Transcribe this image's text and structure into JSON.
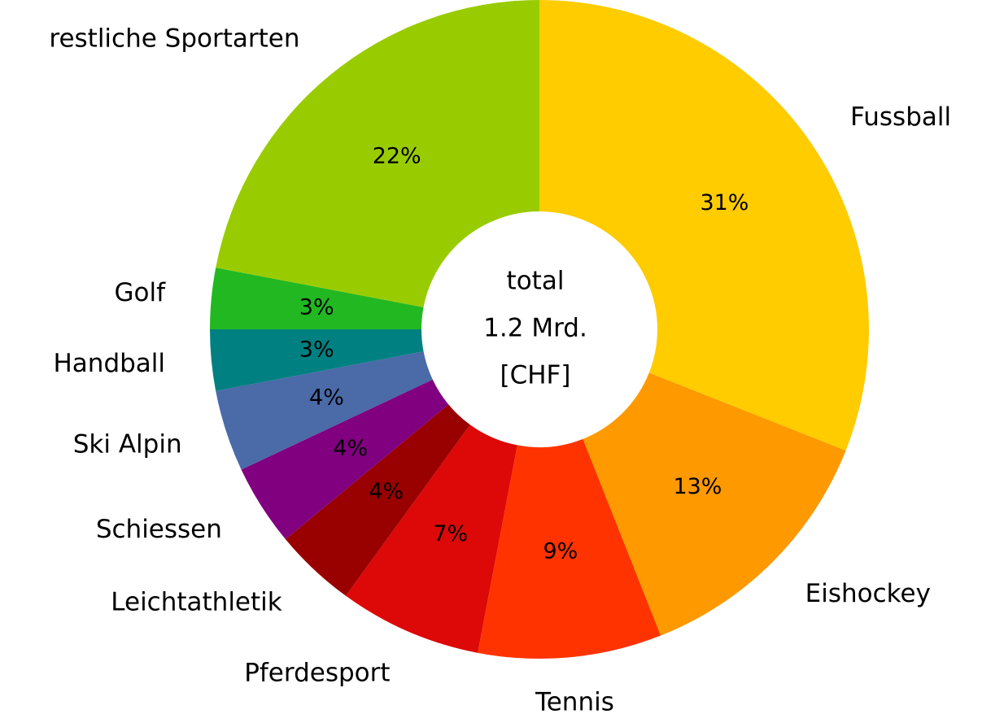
{
  "chart_data": {
    "type": "donut",
    "center_label": [
      "total",
      "1.2 Mrd.",
      "[CHF]"
    ],
    "categories": [
      "Fussball",
      "Eishockey",
      "Tennis",
      "Pferdesport",
      "Leichtathletik",
      "Schiessen",
      "Ski Alpin",
      "Handball",
      "Golf",
      "restliche Sportarten"
    ],
    "values": [
      31,
      13,
      9,
      7,
      4,
      4,
      4,
      3,
      3,
      22
    ],
    "value_labels": [
      "31%",
      "13%",
      "9%",
      "7%",
      "4%",
      "4%",
      "4%",
      "3%",
      "3%",
      "22%"
    ],
    "colors": [
      "#ffcc00",
      "#ff9900",
      "#ff3300",
      "#dd0808",
      "#990000",
      "#800080",
      "#4a6aa8",
      "#008080",
      "#22b822",
      "#99cc00"
    ]
  }
}
